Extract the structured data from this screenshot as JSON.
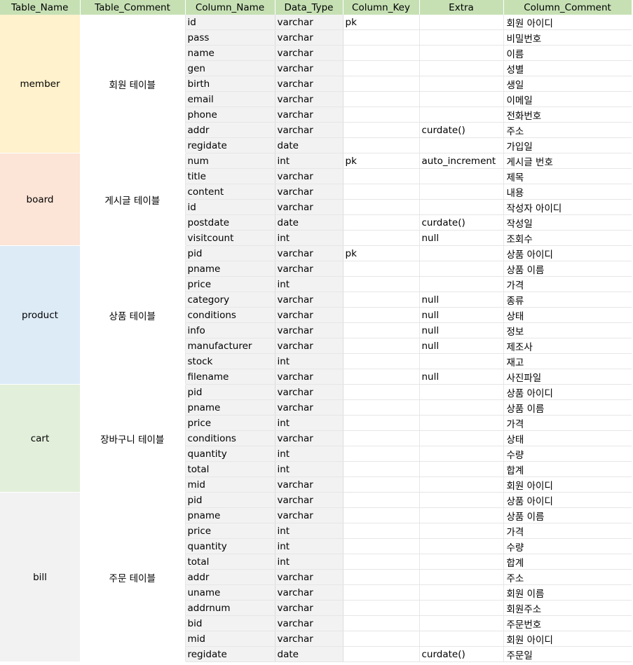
{
  "headers": [
    "Table_Name",
    "Table_Comment",
    "Column_Name",
    "Data_Type",
    "Column_Key",
    "Extra",
    "Column_Comment"
  ],
  "colors": {
    "header": "#c6e0b4",
    "member": "#fff2cc",
    "board": "#fce4d6",
    "product": "#ddebf7",
    "cart": "#e2efda",
    "bill": "#f2f2f2"
  },
  "tables": [
    {
      "name": "member",
      "comment": "회원 테이블",
      "color": "#fff2cc",
      "rows": [
        [
          "id",
          "varchar",
          "pk",
          "",
          "회원 아이디"
        ],
        [
          "pass",
          "varchar",
          "",
          "",
          "비밀번호"
        ],
        [
          "name",
          "varchar",
          "",
          "",
          "이름"
        ],
        [
          "gen",
          "varchar",
          "",
          "",
          "성별"
        ],
        [
          "birth",
          "varchar",
          "",
          "",
          "생일"
        ],
        [
          "email",
          "varchar",
          "",
          "",
          "이메일"
        ],
        [
          "phone",
          "varchar",
          "",
          "",
          "전화번호"
        ],
        [
          "addr",
          "varchar",
          "",
          "curdate()",
          "주소"
        ],
        [
          "regidate",
          "date",
          "",
          "",
          "가입일"
        ]
      ]
    },
    {
      "name": "board",
      "comment": "게시글 테이블",
      "color": "#fce4d6",
      "rows": [
        [
          "num",
          "int",
          "pk",
          "auto_increment",
          "게시글 번호"
        ],
        [
          "title",
          "varchar",
          "",
          "",
          "제목"
        ],
        [
          "content",
          "varchar",
          "",
          "",
          "내용"
        ],
        [
          "id",
          "varchar",
          "",
          "",
          "작성자 아이디"
        ],
        [
          "postdate",
          "date",
          "",
          "curdate()",
          "작성일"
        ],
        [
          "visitcount",
          "int",
          "",
          "null",
          "조회수"
        ]
      ]
    },
    {
      "name": "product",
      "comment": "상품 테이블",
      "color": "#ddebf7",
      "rows": [
        [
          "pid",
          "varchar",
          "pk",
          "",
          "상품 아이디"
        ],
        [
          "pname",
          "varchar",
          "",
          "",
          "상품 이름"
        ],
        [
          "price",
          "int",
          "",
          "",
          "가격"
        ],
        [
          "category",
          "varchar",
          "",
          "null",
          "종류"
        ],
        [
          "conditions",
          "varchar",
          "",
          "null",
          "상태"
        ],
        [
          "info",
          "varchar",
          "",
          "null",
          "정보"
        ],
        [
          "manufacturer",
          "varchar",
          "",
          "null",
          "제조사"
        ],
        [
          "stock",
          "int",
          "",
          "",
          "재고"
        ],
        [
          "filename",
          "varchar",
          "",
          "null",
          "사진파일"
        ]
      ]
    },
    {
      "name": "cart",
      "comment": "장바구니 테이블",
      "color": "#e2efda",
      "rows": [
        [
          "pid",
          "varchar",
          "",
          "",
          "상품 아이디"
        ],
        [
          "pname",
          "varchar",
          "",
          "",
          "상품 이름"
        ],
        [
          "price",
          "int",
          "",
          "",
          "가격"
        ],
        [
          "conditions",
          "varchar",
          "",
          "",
          "상태"
        ],
        [
          "quantity",
          "int",
          "",
          "",
          "수량"
        ],
        [
          "total",
          "int",
          "",
          "",
          "합계"
        ],
        [
          "mid",
          "varchar",
          "",
          "",
          "회원 아이디"
        ]
      ]
    },
    {
      "name": "bill",
      "comment": "주문 테이블",
      "color": "#f2f2f2",
      "rows": [
        [
          "pid",
          "varchar",
          "",
          "",
          "상품 아이디"
        ],
        [
          "pname",
          "varchar",
          "",
          "",
          "상품 이름"
        ],
        [
          "price",
          "int",
          "",
          "",
          "가격"
        ],
        [
          "quantity",
          "int",
          "",
          "",
          "수량"
        ],
        [
          "total",
          "int",
          "",
          "",
          "합계"
        ],
        [
          "addr",
          "varchar",
          "",
          "",
          "주소"
        ],
        [
          "uname",
          "varchar",
          "",
          "",
          "회원 이름"
        ],
        [
          "addrnum",
          "varchar",
          "",
          "",
          "회원주소"
        ],
        [
          "bid",
          "varchar",
          "",
          "",
          "주문번호"
        ],
        [
          "mid",
          "varchar",
          "",
          "",
          "회원 아이디"
        ],
        [
          "regidate",
          "date",
          "",
          "curdate()",
          "주문일"
        ]
      ]
    }
  ]
}
